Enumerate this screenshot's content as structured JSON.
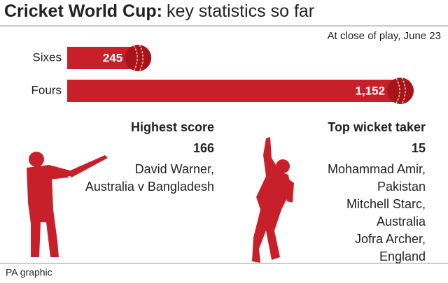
{
  "chart_data": {
    "type": "bar",
    "title_parts": [
      "Cricket World Cup:",
      "key statistics so far"
    ],
    "subtitle": "At close of play, June 23",
    "categories": [
      "Sixes",
      "Fours"
    ],
    "values": [
      245,
      1152
    ],
    "value_labels": [
      "245",
      "1,152"
    ],
    "color": "#c8202a"
  },
  "panels": [
    {
      "heading": "Highest score",
      "value": "166",
      "lines": [
        "David Warner,",
        "Australia v Bangladesh"
      ]
    },
    {
      "heading": "Top wicket taker",
      "value": "15",
      "lines": [
        "Mohammad Amir,",
        "Pakistan",
        "Mitchell Starc,",
        "Australia",
        "Jofra Archer,",
        "England"
      ]
    }
  ],
  "source": "PA graphic"
}
